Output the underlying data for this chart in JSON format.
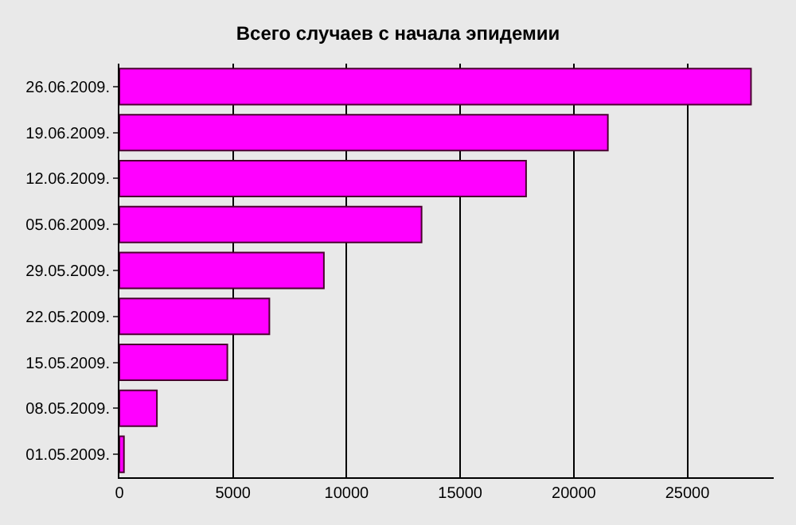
{
  "chart_data": {
    "type": "bar",
    "orientation": "horizontal",
    "title": "Всего случаев с начала эпидемии",
    "categories": [
      "26.06.2009.",
      "19.06.2009.",
      "12.06.2009.",
      "05.06.2009.",
      "29.05.2009.",
      "22.05.2009.",
      "15.05.2009.",
      "08.05.2009.",
      "01.05.2009."
    ],
    "values": [
      27800,
      21500,
      17900,
      13300,
      9000,
      6600,
      4750,
      1650,
      200
    ],
    "color": "#ff00ff",
    "xlim": [
      0,
      28800
    ],
    "xticks": [
      0,
      5000,
      10000,
      15000,
      20000,
      25000
    ],
    "grid": "x",
    "legend": false
  }
}
